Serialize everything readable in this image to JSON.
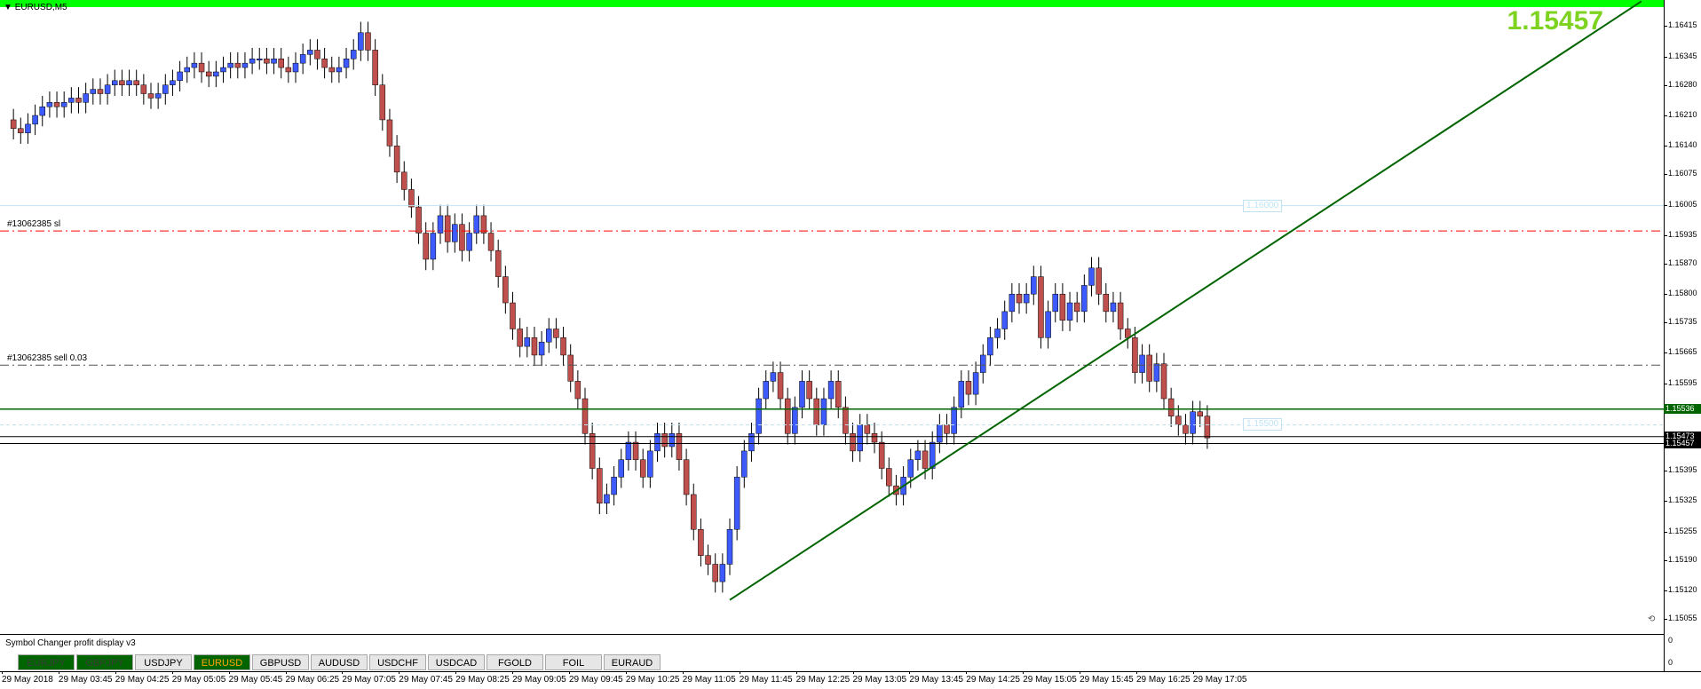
{
  "window": {
    "symbol_label": "EURUSD,M5",
    "current_price_big": "1.15457"
  },
  "price_axis": {
    "range": [
      1.1502,
      1.16475
    ],
    "ticks": [
      "1.16415",
      "1.16345",
      "1.16280",
      "1.16210",
      "1.16140",
      "1.16075",
      "1.16005",
      "1.15935",
      "1.15870",
      "1.15800",
      "1.15735",
      "1.15665",
      "1.15595",
      "1.15530",
      "1.15460",
      "1.15395",
      "1.15325",
      "1.15255",
      "1.15190",
      "1.15120",
      "1.15055"
    ],
    "tags": [
      {
        "text": "1.15536",
        "value": 1.15536,
        "bg": "#006400",
        "color": "#ffffff"
      },
      {
        "text": "1.15473",
        "value": 1.15473,
        "bg": "#000000",
        "color": "#ffffff"
      },
      {
        "text": "1.15457",
        "value": 1.15457,
        "bg": "#000000",
        "color": "#ffffff"
      }
    ]
  },
  "orders": {
    "sl_label": "#13062385 sl",
    "sl_value": 1.15945,
    "sell_label": "#13062385 sell 0.03",
    "sell_value": 1.15637
  },
  "levels": [
    {
      "label": "1.16000",
      "value": 1.16003
    },
    {
      "label": "1.15500",
      "value": 1.155
    }
  ],
  "hlines": {
    "green": 1.15536,
    "bid": 1.15473,
    "ask": 1.15457
  },
  "trendline": {
    "start_bar": 100,
    "start_price": 1.15098,
    "end_bar": 226,
    "end_price": 1.16472,
    "color": "#006400"
  },
  "chart_data": {
    "type": "candlestick",
    "series_colors": {
      "bull": "#3d5afe",
      "bear": "#c0504d"
    },
    "candles": []
  },
  "panel": {
    "title": "Symbol Changer profit display v3",
    "buttons": [
      {
        "label": "EURJPY",
        "state": "green"
      },
      {
        "label": "GBPJPY",
        "state": "green"
      },
      {
        "label": "USDJPY",
        "state": "normal"
      },
      {
        "label": "EURUSD",
        "state": "current"
      },
      {
        "label": "GBPUSD",
        "state": "normal"
      },
      {
        "label": "AUDUSD",
        "state": "normal"
      },
      {
        "label": "USDCHF",
        "state": "normal"
      },
      {
        "label": "USDCAD",
        "state": "normal"
      },
      {
        "label": "FGOLD",
        "state": "normal"
      },
      {
        "label": "FOIL",
        "state": "normal"
      },
      {
        "label": "EURAUD",
        "state": "normal"
      }
    ],
    "axis_top": "0",
    "axis_bottom": "0"
  },
  "time_axis": {
    "labels": [
      "29 May 2018",
      "29 May 03:45",
      "29 May 04:25",
      "29 May 05:05",
      "29 May 05:45",
      "29 May 06:25",
      "29 May 07:05",
      "29 May 07:45",
      "29 May 08:25",
      "29 May 09:05",
      "29 May 09:45",
      "29 May 10:25",
      "29 May 11:05",
      "29 May 11:45",
      "29 May 12:25",
      "29 May 13:05",
      "29 May 13:45",
      "29 May 14:25",
      "29 May 15:05",
      "29 May 15:45",
      "29 May 16:25",
      "29 May 17:05"
    ]
  }
}
